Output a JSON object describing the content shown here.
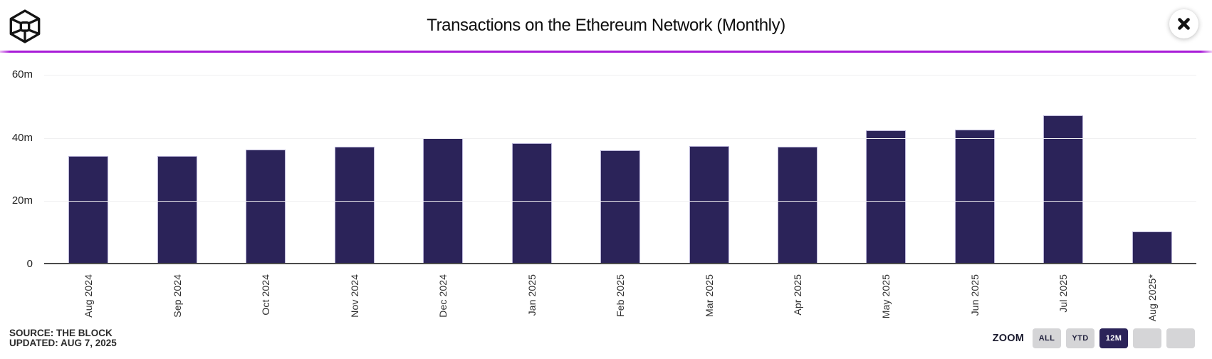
{
  "header": {
    "title": "Transactions on the Ethereum Network (Monthly)"
  },
  "chart_data": {
    "type": "bar",
    "title": "Transactions on the Ethereum Network (Monthly)",
    "categories": [
      "Aug 2024",
      "Sep 2024",
      "Oct 2024",
      "Nov 2024",
      "Dec 2024",
      "Jan 2025",
      "Feb 2025",
      "Mar 2025",
      "Apr 2025",
      "May 2025",
      "Jun 2025",
      "Jul 2025",
      "Aug 2025*"
    ],
    "values": [
      33.8,
      33.9,
      35.9,
      36.7,
      39.5,
      37.8,
      35.6,
      37.1,
      36.8,
      42.0,
      42.1,
      46.6,
      10.0
    ],
    "unit": "m",
    "xlabel": "",
    "ylabel": "",
    "ylim": [
      0,
      60
    ],
    "yticks": [
      {
        "value": 0,
        "label": "0"
      },
      {
        "value": 20,
        "label": "20m"
      },
      {
        "value": 40,
        "label": "40m"
      },
      {
        "value": 60,
        "label": "60m"
      }
    ],
    "grid": true,
    "legend": "none",
    "bar_color": "#2b2359"
  },
  "footer": {
    "source": "SOURCE: THE BLOCK",
    "updated": "UPDATED: AUG 7, 2025",
    "zoom_label": "ZOOM",
    "zoom_buttons": [
      {
        "label": "ALL",
        "active": false
      },
      {
        "label": "YTD",
        "active": false
      },
      {
        "label": "12M",
        "active": true
      },
      {
        "label": "",
        "active": false
      },
      {
        "label": "",
        "active": false
      }
    ]
  },
  "colors": {
    "divider_accent": "#a81cd8",
    "bar": "#2b2359",
    "active_button_bg": "#2b2359",
    "inactive_button_bg": "#d5d5d7",
    "baseline": "#4b4b4b",
    "gridline": "#f0f0f1"
  }
}
